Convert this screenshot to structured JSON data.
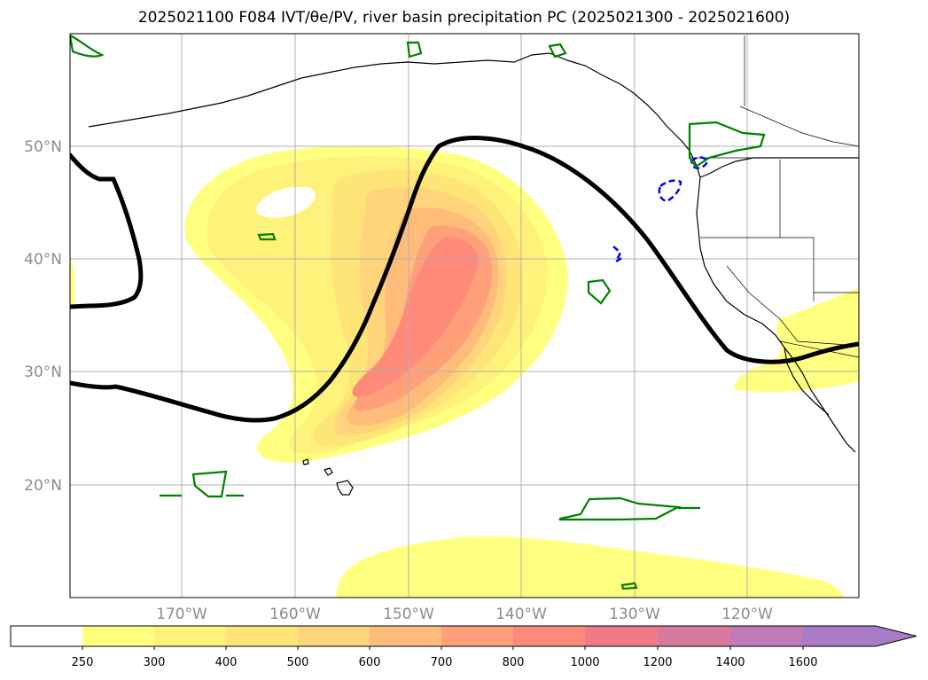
{
  "title": "2025021100 F084 IVT/θe/PV, river basin precipitation PC (2025021300 - 2025021600)",
  "map": {
    "lat_labels": [
      "50°N",
      "40°N",
      "30°N",
      "20°N"
    ],
    "lon_labels": [
      "170°W",
      "160°W",
      "150°W",
      "140°W",
      "130°W",
      "120°W"
    ],
    "colors": {
      "theta_e_contour": "#000000",
      "pv_contour": "#0000ff",
      "precip_pc_contour": "#008000",
      "coastline": "#000000",
      "gridline": "#b0b0b0"
    }
  },
  "colorbar": {
    "levels": [
      "250",
      "300",
      "400",
      "500",
      "600",
      "700",
      "800",
      "1000",
      "1200",
      "1400",
      "1600"
    ],
    "colors": [
      "#ffffff",
      "#ffff80",
      "#fff27a",
      "#ffe478",
      "#ffd47a",
      "#ffbb7a",
      "#ffa07a",
      "#ff8a7a",
      "#f07a8a",
      "#d87aa0",
      "#c07ab8",
      "#a87ac8"
    ],
    "extend": "max"
  }
}
